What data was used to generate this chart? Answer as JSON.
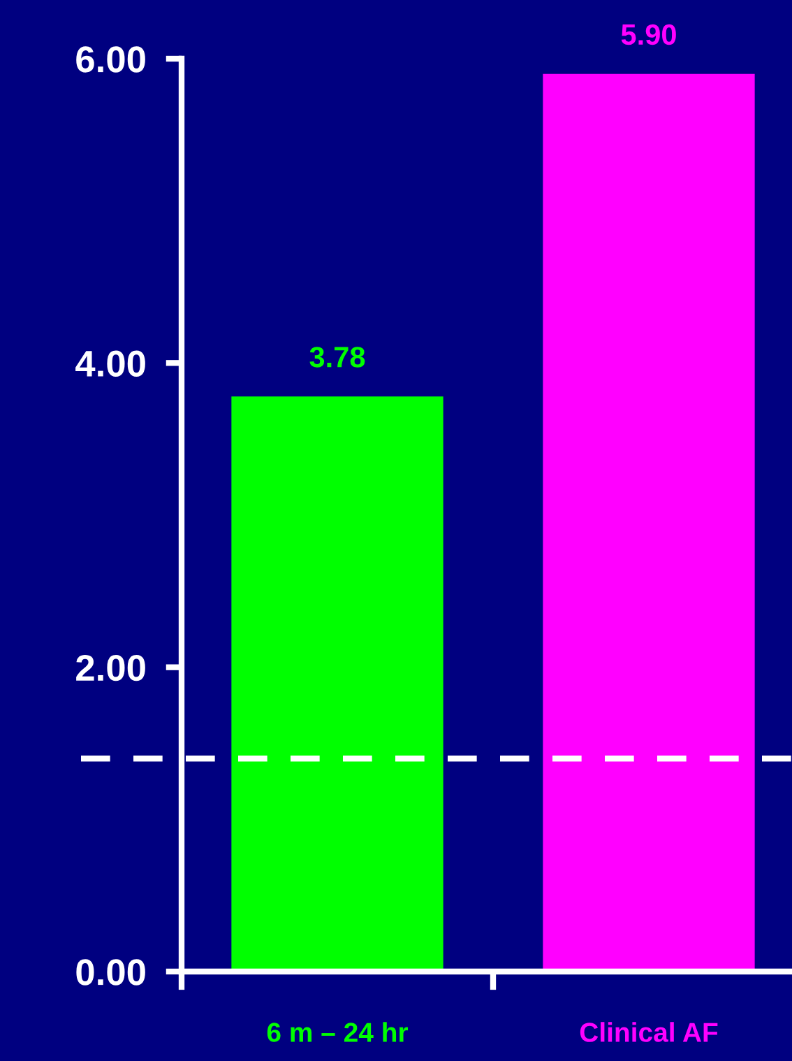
{
  "chart_data": {
    "type": "bar",
    "categories": [
      "6 m – 24 hr",
      "Clinical AF"
    ],
    "values": [
      3.78,
      5.9
    ],
    "colors": [
      "#00ff00",
      "#ff00ff"
    ],
    "value_labels": [
      "3.78",
      "5.90"
    ],
    "ylim": [
      0,
      6
    ],
    "yticks": [
      {
        "value": 0,
        "label": "0.00"
      },
      {
        "value": 2,
        "label": "2.00"
      },
      {
        "value": 4,
        "label": "4.00"
      },
      {
        "value": 6,
        "label": "6.00"
      }
    ],
    "ref_lines": [
      {
        "axis": "y",
        "value": 1.4,
        "color": "#ffffff",
        "line_style": "dashed"
      }
    ],
    "grid": false
  }
}
